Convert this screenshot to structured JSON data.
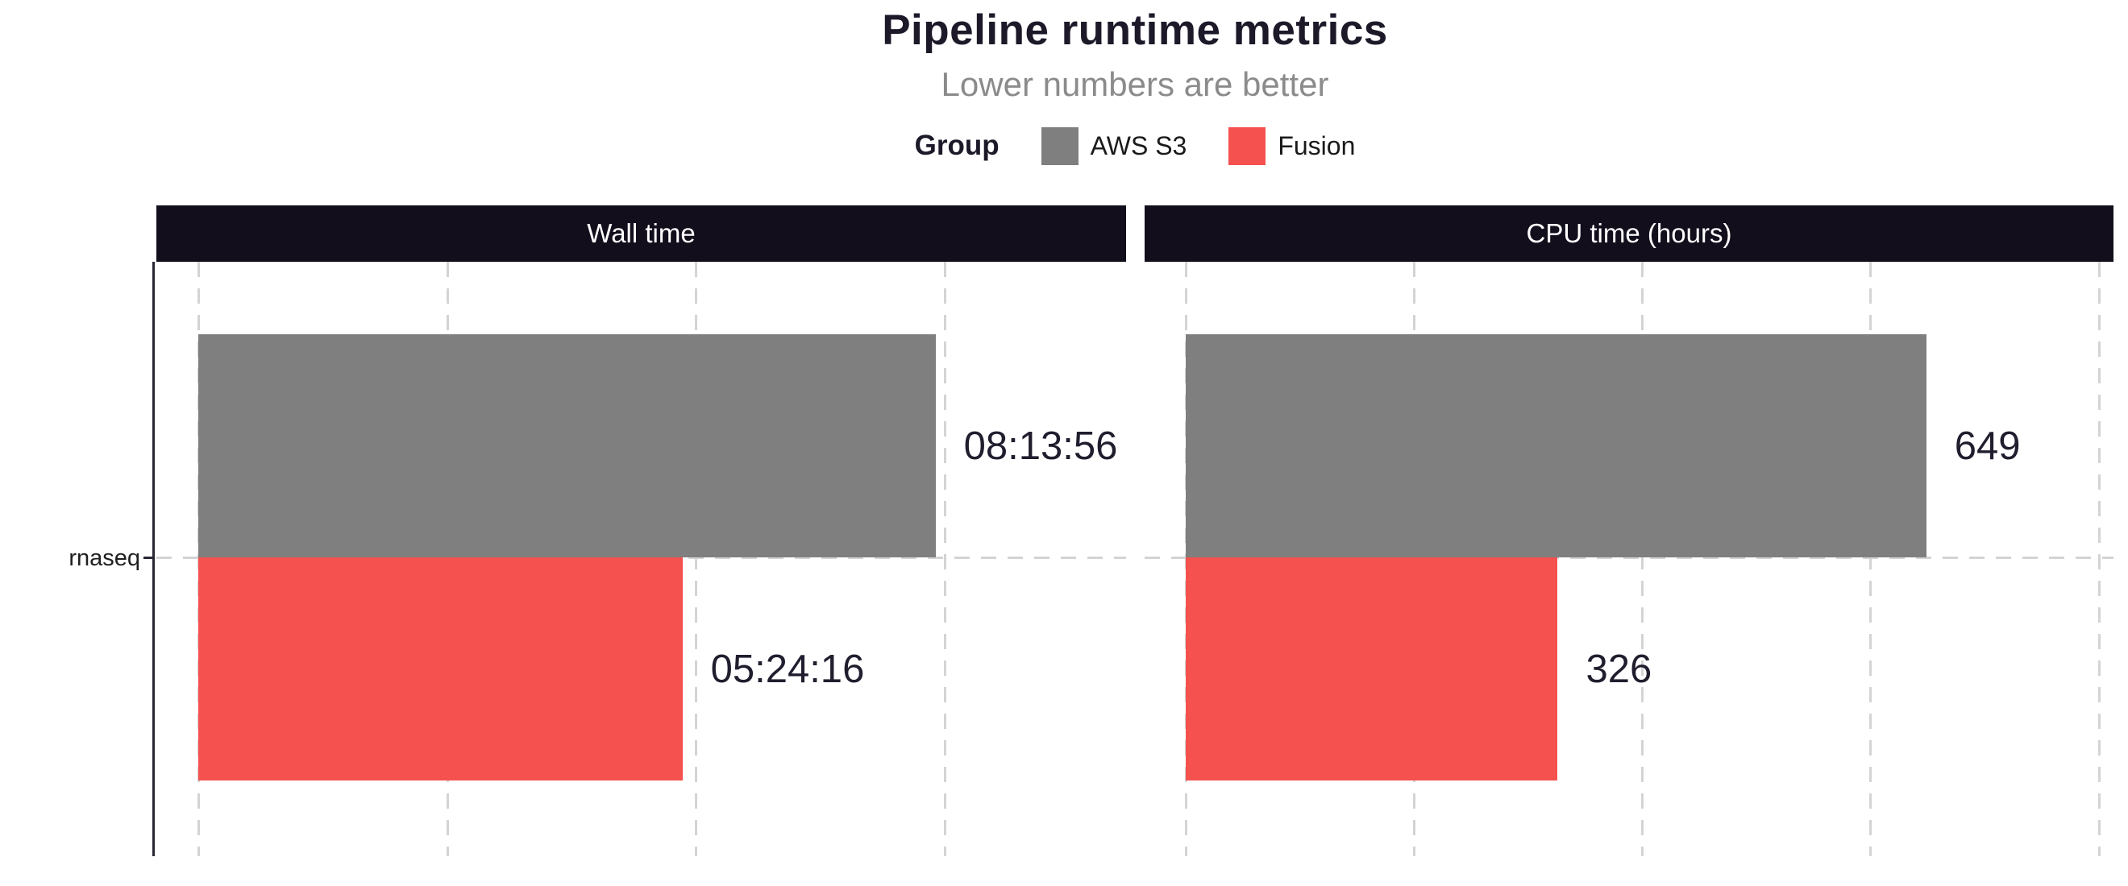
{
  "chart_data": {
    "type": "bar",
    "orientation": "horizontal",
    "title": "Pipeline runtime metrics",
    "subtitle": "Lower numbers are better",
    "legend_title": "Group",
    "legend_position": "top",
    "grid": "dashed-vertical-and-category-line",
    "y_axis_label": "rnaseq",
    "categories": [
      "rnaseq"
    ],
    "groups": [
      {
        "name": "AWS S3",
        "color": "#7f7f7f"
      },
      {
        "name": "Fusion",
        "color": "#f5514f"
      }
    ],
    "panels": [
      {
        "title": "Wall time",
        "unit": "seconds (labels shown as hh:mm:ss)",
        "axis": {
          "domain": [
            -1700,
            37300
          ],
          "gridlines": [
            0,
            10000,
            20000,
            30000
          ]
        },
        "bars": [
          {
            "group": "AWS S3",
            "value": 29636,
            "label": "08:13:56"
          },
          {
            "group": "Fusion",
            "value": 19456,
            "label": "05:24:16"
          }
        ]
      },
      {
        "title": "CPU time (hours)",
        "unit": "hours",
        "axis": {
          "domain": [
            -36,
            813
          ],
          "gridlines": [
            0,
            200,
            400,
            600,
            800
          ]
        },
        "bars": [
          {
            "group": "AWS S3",
            "value": 649,
            "label": "649"
          },
          {
            "group": "Fusion",
            "value": 326,
            "label": "326"
          }
        ]
      }
    ],
    "colors": {
      "strip_background": "#120e1c",
      "strip_text": "#ffffff",
      "gridline": "#d4d4d4",
      "axis_line": "#2a2633",
      "title_text": "#1d1929",
      "subtitle_text": "#8b8b8b",
      "value_text": "#211d2e"
    }
  }
}
